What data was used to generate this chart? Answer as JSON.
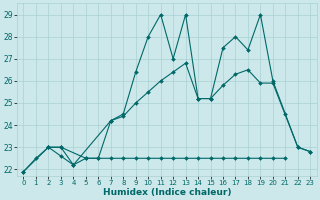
{
  "xlabel": "Humidex (Indice chaleur)",
  "xlim": [
    -0.5,
    23.5
  ],
  "ylim": [
    21.7,
    29.5
  ],
  "yticks": [
    22,
    23,
    24,
    25,
    26,
    27,
    28,
    29
  ],
  "xticks": [
    0,
    1,
    2,
    3,
    4,
    5,
    6,
    7,
    8,
    9,
    10,
    11,
    12,
    13,
    14,
    15,
    16,
    17,
    18,
    19,
    20,
    21,
    22,
    23
  ],
  "bg_color": "#cce8ea",
  "grid_color": "#aad0d3",
  "line_color": "#006868",
  "series1": {
    "x": [
      0,
      1,
      2,
      3,
      4,
      5,
      6,
      7,
      8,
      9,
      10,
      11,
      12,
      13,
      14,
      15,
      16,
      17,
      18,
      19,
      20,
      21
    ],
    "y": [
      21.9,
      22.5,
      23.0,
      22.6,
      22.2,
      22.5,
      22.5,
      22.5,
      22.5,
      22.5,
      22.5,
      22.5,
      22.5,
      22.5,
      22.5,
      22.5,
      22.5,
      22.5,
      22.5,
      22.5,
      22.5,
      22.5
    ]
  },
  "series2": {
    "x": [
      2,
      3,
      4,
      7,
      8,
      9,
      10,
      11,
      12,
      13,
      14,
      15,
      16,
      17,
      18,
      19,
      20,
      21,
      22,
      23
    ],
    "y": [
      23.0,
      23.0,
      22.2,
      24.2,
      24.5,
      26.4,
      28.0,
      29.0,
      27.0,
      29.0,
      25.2,
      25.2,
      27.5,
      28.0,
      27.4,
      29.0,
      26.0,
      24.5,
      23.0,
      22.8
    ]
  },
  "series3": {
    "x": [
      0,
      2,
      3,
      5,
      6,
      7,
      8,
      9,
      10,
      11,
      12,
      13,
      14,
      15,
      16,
      17,
      18,
      19,
      20,
      22,
      23
    ],
    "y": [
      21.9,
      23.0,
      23.0,
      22.5,
      22.5,
      24.2,
      24.4,
      25.0,
      25.5,
      26.0,
      26.4,
      26.8,
      25.2,
      25.2,
      25.8,
      26.3,
      26.5,
      25.9,
      25.9,
      23.0,
      22.8
    ]
  }
}
